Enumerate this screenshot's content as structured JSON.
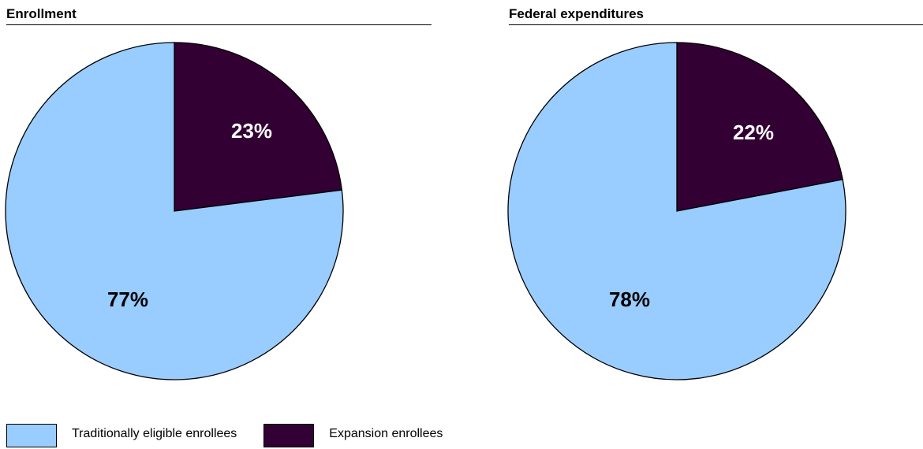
{
  "colors": {
    "traditional": "#99ccff",
    "expansion": "#330033",
    "outline": "#000000",
    "traditional_label": "#000000",
    "expansion_label": "#ffffff"
  },
  "legend": [
    {
      "label": "Traditionally eligible enrollees",
      "color": "#99ccff"
    },
    {
      "label": "Expansion enrollees",
      "color": "#330033"
    }
  ],
  "chart_data": [
    {
      "type": "pie",
      "title": "Enrollment",
      "slices": [
        {
          "label": "Expansion enrollees",
          "value": 23,
          "display": "23%",
          "color": "#330033"
        },
        {
          "label": "Traditionally eligible enrollees",
          "value": 77,
          "display": "77%",
          "color": "#99ccff"
        }
      ],
      "start_angle": "12 o'clock",
      "direction": "clockwise"
    },
    {
      "type": "pie",
      "title": "Federal expenditures",
      "slices": [
        {
          "label": "Expansion enrollees",
          "value": 22,
          "display": "22%",
          "color": "#330033"
        },
        {
          "label": "Traditionally eligible enrollees",
          "value": 78,
          "display": "78%",
          "color": "#99ccff"
        }
      ],
      "start_angle": "12 o'clock",
      "direction": "clockwise"
    }
  ]
}
